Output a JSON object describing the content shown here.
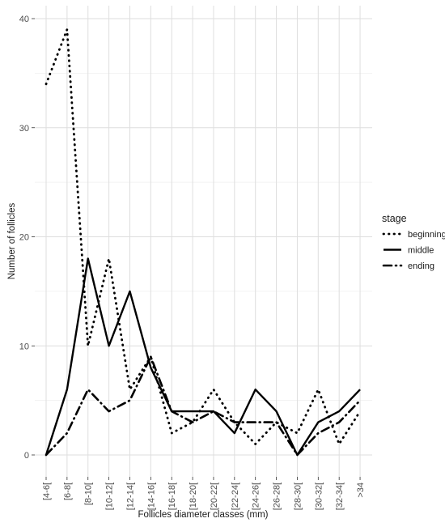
{
  "chart_data": {
    "type": "line",
    "xlabel": "Follicles diameter classes (mm)",
    "ylabel": "Number of follicles",
    "categories": [
      "[4-6[",
      "[6-8[",
      "[8-10[",
      "[10-12[",
      "[12-14[",
      "[14-16[",
      "[16-18[",
      "[18-20[",
      "[20-22[",
      "[22-24[",
      "[24-26[",
      "[26-28[",
      "[28-30[",
      "[30-32[",
      "[32-34[",
      ">34"
    ],
    "ylim": [
      0,
      40
    ],
    "yticks": [
      0,
      10,
      20,
      30,
      40
    ],
    "grid": true,
    "legend": {
      "title": "stage",
      "position": "right"
    },
    "series": [
      {
        "name": "beginning",
        "linestyle": "dotted",
        "color": "#000000",
        "values": [
          34,
          39,
          10,
          18,
          6,
          9,
          2,
          3,
          6,
          3,
          1,
          3,
          2,
          6,
          1,
          4
        ]
      },
      {
        "name": "middle",
        "linestyle": "solid",
        "color": "#000000",
        "values": [
          0,
          6,
          18,
          10,
          15,
          8,
          4,
          4,
          4,
          2,
          6,
          4,
          0,
          3,
          4,
          6
        ]
      },
      {
        "name": "ending",
        "linestyle": "dashdot",
        "color": "#000000",
        "values": [
          0,
          2,
          6,
          4,
          5,
          9,
          4,
          3,
          4,
          3,
          3,
          3,
          0,
          2,
          3,
          5
        ]
      }
    ]
  }
}
